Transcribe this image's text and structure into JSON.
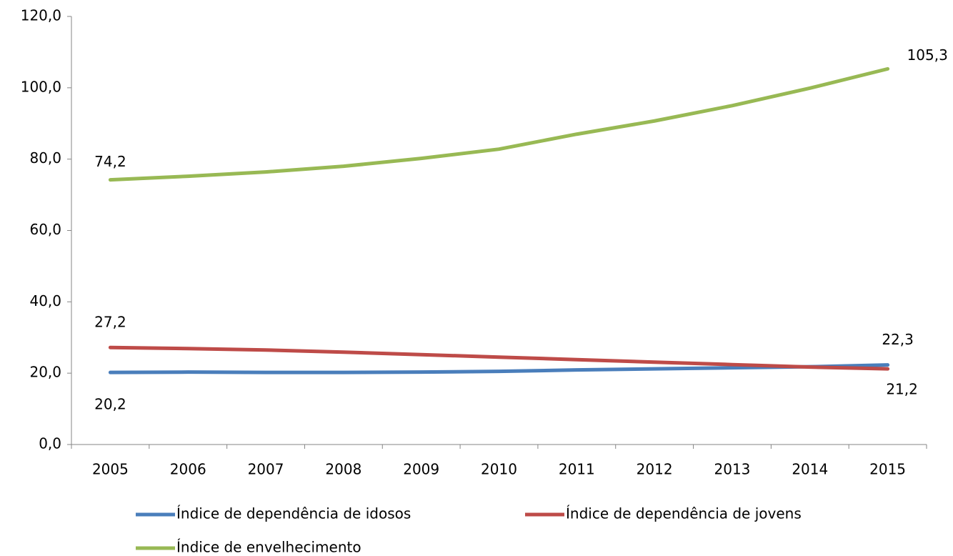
{
  "chart_data": {
    "type": "line",
    "categories": [
      "2005",
      "2006",
      "2007",
      "2008",
      "2009",
      "2010",
      "2011",
      "2012",
      "2013",
      "2014",
      "2015"
    ],
    "series": [
      {
        "name": "Índice de dependência de idosos",
        "color": "#4a7ebb",
        "values": [
          20.2,
          20.3,
          20.2,
          20.2,
          20.3,
          20.5,
          20.9,
          21.2,
          21.5,
          21.8,
          22.3
        ],
        "value_labels": [
          "20,2",
          null,
          null,
          null,
          null,
          null,
          null,
          null,
          null,
          null,
          "22,3"
        ]
      },
      {
        "name": "Índice de dependência de jovens",
        "color": "#be4b48",
        "values": [
          27.2,
          26.9,
          26.5,
          25.9,
          25.2,
          24.5,
          23.8,
          23.1,
          22.4,
          21.7,
          21.2
        ],
        "value_labels": [
          "27,2",
          null,
          null,
          null,
          null,
          null,
          null,
          null,
          null,
          null,
          "21,2"
        ]
      },
      {
        "name": "Índice de envelhecimento",
        "color": "#98b954",
        "values": [
          74.2,
          75.2,
          76.4,
          78.0,
          80.2,
          82.8,
          87.0,
          90.7,
          95.0,
          99.9,
          105.3
        ],
        "value_labels": [
          "74,2",
          null,
          null,
          null,
          null,
          null,
          null,
          null,
          null,
          null,
          "105,3"
        ]
      }
    ],
    "ylim": [
      0,
      120
    ],
    "yticks": [
      {
        "value": 0,
        "label": "0,0"
      },
      {
        "value": 20,
        "label": "20,0"
      },
      {
        "value": 40,
        "label": "40,0"
      },
      {
        "value": 60,
        "label": "60,0"
      },
      {
        "value": 80,
        "label": "80,0"
      },
      {
        "value": 100,
        "label": "100,0"
      },
      {
        "value": 120,
        "label": "120,0"
      }
    ],
    "legend": "bottom"
  }
}
